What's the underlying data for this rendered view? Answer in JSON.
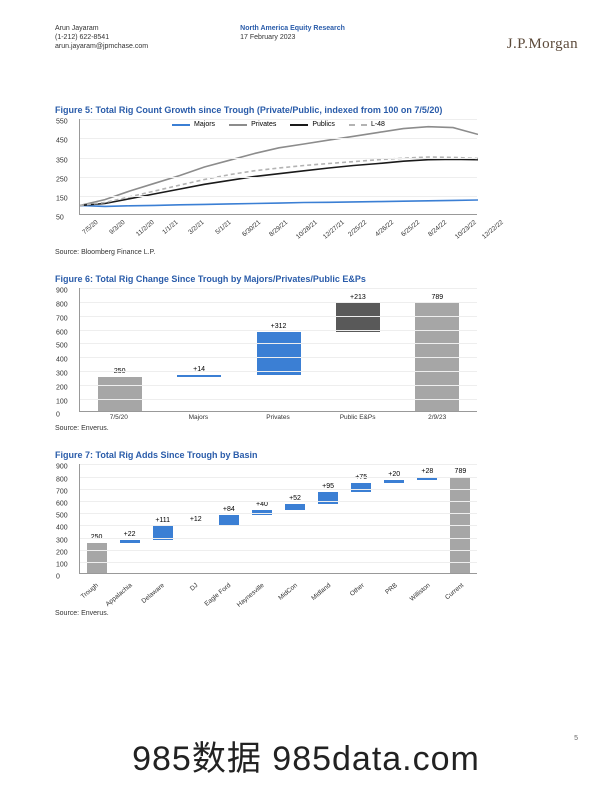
{
  "header": {
    "author": "Arun Jayaram",
    "phone": "(1-212) 622-8541",
    "email": "arun.jayaram@jpmchase.com",
    "dept": "North America Equity Research",
    "date": "17 February 2023",
    "logo": "J.P.Morgan"
  },
  "fig5": {
    "title": "Figure 5: Total Rig Count Growth since Trough (Private/Public, indexed from 100 on 7/5/20)",
    "source": "Source: Bloomberg Finance L.P.",
    "ylim": [
      50,
      550
    ],
    "ytick_step": 100,
    "legend": [
      {
        "label": "Majors",
        "color": "#3b7fd4",
        "dash": "solid"
      },
      {
        "label": "Privates",
        "color": "#8c8c8c",
        "dash": "solid"
      },
      {
        "label": "Publics",
        "color": "#1a1a1a",
        "dash": "solid"
      },
      {
        "label": "L-48",
        "color": "#b3b3b3",
        "dash": "dashed"
      }
    ],
    "xlabels": [
      "7/5/20",
      "9/3/20",
      "11/2/20",
      "1/1/21",
      "3/2/21",
      "5/1/21",
      "6/30/21",
      "8/29/21",
      "10/28/21",
      "12/27/21",
      "2/25/22",
      "4/26/22",
      "6/25/22",
      "8/24/22",
      "10/23/22",
      "12/22/22"
    ],
    "series": {
      "Majors": [
        100,
        95,
        98,
        100,
        103,
        105,
        108,
        110,
        112,
        115,
        116,
        118,
        120,
        122,
        124,
        126,
        128
      ],
      "Privates": [
        100,
        130,
        175,
        215,
        255,
        300,
        335,
        370,
        400,
        420,
        440,
        460,
        480,
        500,
        510,
        505,
        470
      ],
      "Publics": [
        100,
        110,
        135,
        160,
        185,
        210,
        230,
        250,
        265,
        280,
        295,
        308,
        318,
        330,
        338,
        340,
        338
      ],
      "L-48": [
        100,
        115,
        145,
        175,
        205,
        235,
        260,
        280,
        295,
        308,
        318,
        328,
        338,
        346,
        352,
        350,
        345
      ]
    }
  },
  "fig6": {
    "title": "Figure 6: Total Rig Change Since Trough by Majors/Privates/Public E&Ps",
    "source": "Source: Enverus.",
    "ylim": [
      0,
      900
    ],
    "ytick_step": 100,
    "bars": [
      {
        "name": "7/5/20",
        "label": "250",
        "full": 250,
        "highlight": 0,
        "color": "#a6a6a6"
      },
      {
        "name": "Majors",
        "label": "+14",
        "full": 264,
        "highlight": 14,
        "color": "#3b7fd4"
      },
      {
        "name": "Privates",
        "label": "+312",
        "full": 576,
        "highlight": 312,
        "color": "#3b7fd4"
      },
      {
        "name": "Public E&Ps",
        "label": "+213",
        "full": 789,
        "highlight": 213,
        "color": "#595959"
      },
      {
        "name": "2/9/23",
        "label": "789",
        "full": 789,
        "highlight": 0,
        "color": "#a6a6a6"
      }
    ]
  },
  "fig7": {
    "title": "Figure 7: Total Rig Adds Since Trough by Basin",
    "source": "Source: Enverus.",
    "ylim": [
      0,
      900
    ],
    "ytick_step": 100,
    "bars": [
      {
        "name": "Trough",
        "label": "250",
        "full": 250,
        "top": 0,
        "color": "#a6a6a6"
      },
      {
        "name": "Appalachia",
        "label": "+22",
        "full": 272,
        "top": 22,
        "color": "#3b7fd4"
      },
      {
        "name": "Delaware",
        "label": "+111",
        "full": 383,
        "top": 111,
        "color": "#3b7fd4"
      },
      {
        "name": "DJ",
        "label": "+12",
        "full": 395,
        "top": 12,
        "color": "#3b7fd4"
      },
      {
        "name": "Eagle Ford",
        "label": "+84",
        "full": 479,
        "top": 84,
        "color": "#3b7fd4"
      },
      {
        "name": "Haynesville",
        "label": "+40",
        "full": 519,
        "top": 40,
        "color": "#3b7fd4"
      },
      {
        "name": "MidCon",
        "label": "+52",
        "full": 571,
        "top": 52,
        "color": "#3b7fd4"
      },
      {
        "name": "Midland",
        "label": "+95",
        "full": 666,
        "top": 95,
        "color": "#3b7fd4"
      },
      {
        "name": "Other",
        "label": "+75",
        "full": 741,
        "top": 75,
        "color": "#3b7fd4"
      },
      {
        "name": "PRB",
        "label": "+20",
        "full": 761,
        "top": 20,
        "color": "#3b7fd4"
      },
      {
        "name": "Williston",
        "label": "+28",
        "full": 789,
        "top": 28,
        "color": "#3b7fd4"
      },
      {
        "name": "Current",
        "label": "789",
        "full": 789,
        "top": 0,
        "color": "#a6a6a6"
      }
    ]
  },
  "footer": {
    "watermark": "985数据 985data.com",
    "page": "5"
  }
}
